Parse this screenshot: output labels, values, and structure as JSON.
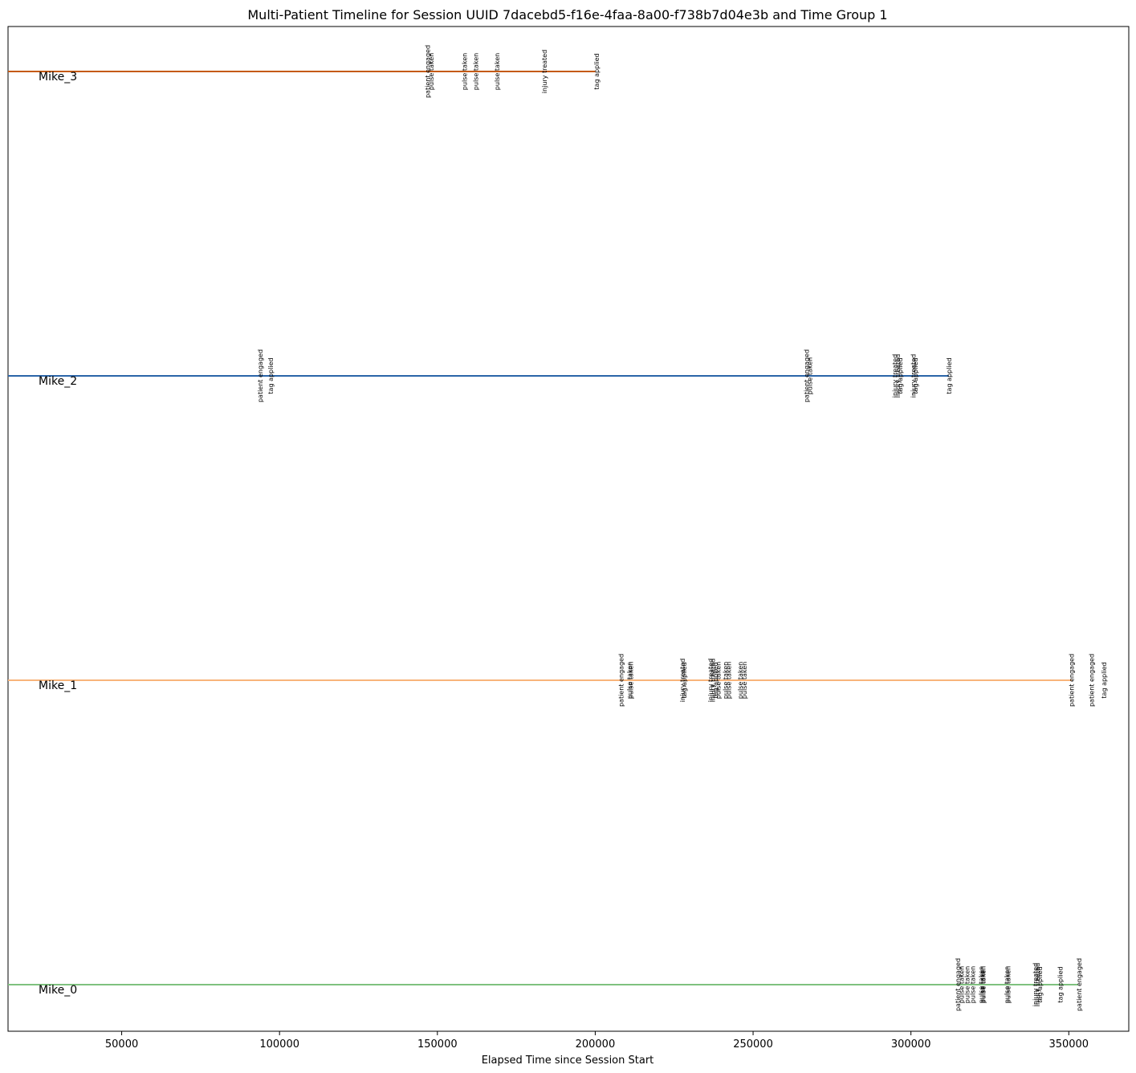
{
  "chart_data": {
    "type": "timeline",
    "title": "Multi-Patient Timeline for Session UUID 7dacebd5-f16e-4faa-8a00-f738b7d04e3b and Time Group 1",
    "xlabel": "Elapsed Time since Session Start",
    "ylabel": "",
    "xlim": [
      14000,
      369000
    ],
    "xticks": [
      50000,
      100000,
      150000,
      200000,
      250000,
      300000,
      350000
    ],
    "xtick_labels": [
      "50000",
      "100000",
      "150000",
      "200000",
      "250000",
      "300000",
      "350000"
    ],
    "grid": false,
    "series": [
      {
        "name": "Mike_3",
        "color": "#c55a11",
        "start": 14000,
        "end": 200000,
        "events": [
          {
            "x": 147000,
            "label": "patient engaged"
          },
          {
            "x": 148200,
            "label": "pulse taken"
          },
          {
            "x": 158700,
            "label": "pulse taken"
          },
          {
            "x": 162200,
            "label": "pulse taken"
          },
          {
            "x": 169000,
            "label": "pulse taken"
          },
          {
            "x": 184000,
            "label": "injury treated"
          },
          {
            "x": 200500,
            "label": "tag applied"
          }
        ]
      },
      {
        "name": "Mike_2",
        "color": "#2b65a8",
        "start": 14000,
        "end": 312000,
        "events": [
          {
            "x": 94000,
            "label": "patient engaged"
          },
          {
            "x": 97300,
            "label": "tag applied"
          },
          {
            "x": 267000,
            "label": "patient engaged"
          },
          {
            "x": 268100,
            "label": "pulse taken"
          },
          {
            "x": 295000,
            "label": "injury treated"
          },
          {
            "x": 295900,
            "label": "injury treated"
          },
          {
            "x": 296600,
            "label": "tag applied"
          },
          {
            "x": 300800,
            "label": "injury treated"
          },
          {
            "x": 301500,
            "label": "tag applied"
          },
          {
            "x": 312200,
            "label": "tag applied"
          }
        ]
      },
      {
        "name": "Mike_1",
        "color": "#f8b47b",
        "start": 14000,
        "end": 351000,
        "events": [
          {
            "x": 208300,
            "label": "patient engaged"
          },
          {
            "x": 211000,
            "label": "pulse taken"
          },
          {
            "x": 211300,
            "label": "pulse taken"
          },
          {
            "x": 227700,
            "label": "injury treated"
          },
          {
            "x": 228300,
            "label": "tag applied"
          },
          {
            "x": 236600,
            "label": "injury treated"
          },
          {
            "x": 237300,
            "label": "injury treated"
          },
          {
            "x": 238200,
            "label": "tag applied"
          },
          {
            "x": 239000,
            "label": "pulse taken"
          },
          {
            "x": 241400,
            "label": "pulse taken"
          },
          {
            "x": 242300,
            "label": "pulse taken"
          },
          {
            "x": 246000,
            "label": "pulse taken"
          },
          {
            "x": 247300,
            "label": "pulse taken"
          },
          {
            "x": 351000,
            "label": "patient engaged"
          },
          {
            "x": 357300,
            "label": "patient engaged"
          },
          {
            "x": 361300,
            "label": "tag applied"
          }
        ]
      },
      {
        "name": "Mike_0",
        "color": "#7fc17f",
        "start": 14000,
        "end": 353000,
        "events": [
          {
            "x": 315000,
            "label": "patient engaged"
          },
          {
            "x": 316100,
            "label": "pulse taken"
          },
          {
            "x": 317900,
            "label": "pulse taken"
          },
          {
            "x": 319700,
            "label": "pulse taken"
          },
          {
            "x": 322300,
            "label": "pulse taken"
          },
          {
            "x": 322700,
            "label": "pulse taken"
          },
          {
            "x": 323000,
            "label": "pulse taken"
          },
          {
            "x": 330500,
            "label": "pulse taken"
          },
          {
            "x": 330900,
            "label": "pulse taken"
          },
          {
            "x": 339500,
            "label": "injury treated"
          },
          {
            "x": 340200,
            "label": "injury treated"
          },
          {
            "x": 340900,
            "label": "tag applied"
          },
          {
            "x": 347400,
            "label": "tag applied"
          },
          {
            "x": 353400,
            "label": "patient engaged"
          }
        ]
      }
    ]
  }
}
